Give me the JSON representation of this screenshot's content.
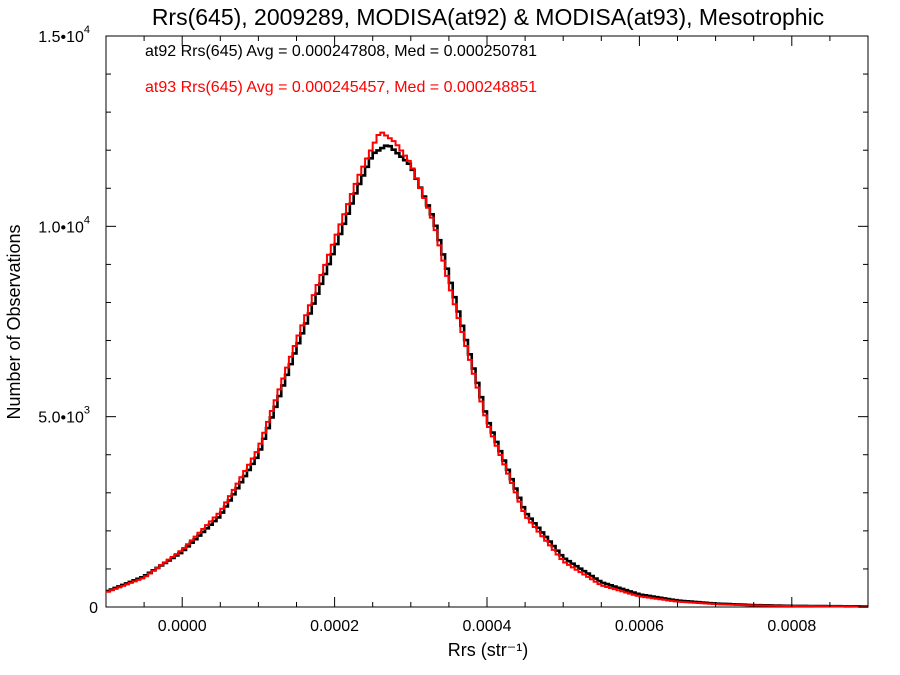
{
  "chart_data": {
    "type": "line",
    "title": "Rrs(645), 2009289, MODISA(at92) & MODISA(at93), Mesotrophic",
    "xlabel": "Rrs (str⁻¹)",
    "ylabel": "Number of Observations",
    "xlim": [
      -0.0001,
      0.0009
    ],
    "ylim": [
      0,
      15000
    ],
    "x_ticks": [
      {
        "value": 0.0,
        "label": "0.0000"
      },
      {
        "value": 0.0002,
        "label": "0.0002"
      },
      {
        "value": 0.0004,
        "label": "0.0004"
      },
      {
        "value": 0.0006,
        "label": "0.0006"
      },
      {
        "value": 0.0008,
        "label": "0.0008"
      }
    ],
    "y_ticks": [
      {
        "value": 0,
        "mantissa": "0",
        "exponent": ""
      },
      {
        "value": 5000,
        "mantissa": "5.0•1",
        "exponent": "3"
      },
      {
        "value": 10000,
        "mantissa": "1.0•1",
        "exponent": "4"
      },
      {
        "value": 15000,
        "mantissa": "1.5•1",
        "exponent": "4"
      }
    ],
    "series": [
      {
        "name": "at92",
        "color": "#000000",
        "stats_text": "at92 Rrs(645) Avg = 0.000247808, Med = 0.000250781",
        "points": [
          [
            -0.0001,
            400
          ],
          [
            -5e-05,
            800
          ],
          [
            0.0,
            1450
          ],
          [
            5e-05,
            2400
          ],
          [
            0.0001,
            4000
          ],
          [
            0.00015,
            6800
          ],
          [
            0.0002,
            9400
          ],
          [
            0.00023,
            11000
          ],
          [
            0.00025,
            11900
          ],
          [
            0.00027,
            12150
          ],
          [
            0.0003,
            11600
          ],
          [
            0.00033,
            10200
          ],
          [
            0.00035,
            8700
          ],
          [
            0.0004,
            4950
          ],
          [
            0.00045,
            2500
          ],
          [
            0.0005,
            1300
          ],
          [
            0.00055,
            650
          ],
          [
            0.0006,
            330
          ],
          [
            0.00065,
            170
          ],
          [
            0.0007,
            90
          ],
          [
            0.00075,
            50
          ],
          [
            0.0008,
            30
          ],
          [
            0.0009,
            15
          ]
        ]
      },
      {
        "name": "at93",
        "color": "#ff0000",
        "stats_text": "at93 Rrs(645) Avg = 0.000245457, Med = 0.000248851",
        "points": [
          [
            -0.0001,
            380
          ],
          [
            -5e-05,
            770
          ],
          [
            0.0,
            1500
          ],
          [
            5e-05,
            2500
          ],
          [
            0.0001,
            4150
          ],
          [
            0.00015,
            7000
          ],
          [
            0.0002,
            9650
          ],
          [
            0.00023,
            11250
          ],
          [
            0.00025,
            12100
          ],
          [
            0.00026,
            12500
          ],
          [
            0.00028,
            12200
          ],
          [
            0.0003,
            11650
          ],
          [
            0.00033,
            10100
          ],
          [
            0.00035,
            8500
          ],
          [
            0.0004,
            4850
          ],
          [
            0.00045,
            2400
          ],
          [
            0.0005,
            1200
          ],
          [
            0.00055,
            570
          ],
          [
            0.0006,
            280
          ],
          [
            0.00065,
            140
          ],
          [
            0.0007,
            75
          ],
          [
            0.00075,
            40
          ],
          [
            0.0008,
            25
          ],
          [
            0.0009,
            12
          ]
        ]
      }
    ]
  }
}
